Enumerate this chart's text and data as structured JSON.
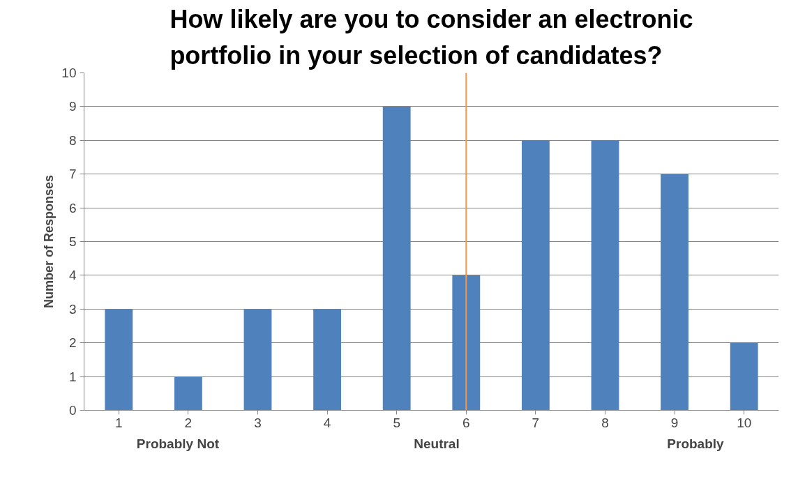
{
  "chart_data": {
    "type": "bar",
    "title": "How likely are you to consider an electronic portfolio in your selection of candidates?",
    "ylabel": "Number of Responses",
    "categories": [
      "1",
      "2",
      "3",
      "4",
      "5",
      "6",
      "7",
      "8",
      "9",
      "10"
    ],
    "values": [
      3,
      1,
      3,
      3,
      9,
      4,
      8,
      8,
      7,
      2
    ],
    "color": "#4f81bd",
    "ylim": [
      0,
      10
    ],
    "yticks": [
      0,
      1,
      2,
      3,
      4,
      5,
      6,
      7,
      8,
      9,
      10
    ],
    "grid": "y",
    "ref_lines": [
      {
        "axis": "x",
        "value": "6",
        "color": "#f79646"
      }
    ],
    "annotations": [
      "Probably Not",
      "Neutral",
      "Probably"
    ]
  }
}
